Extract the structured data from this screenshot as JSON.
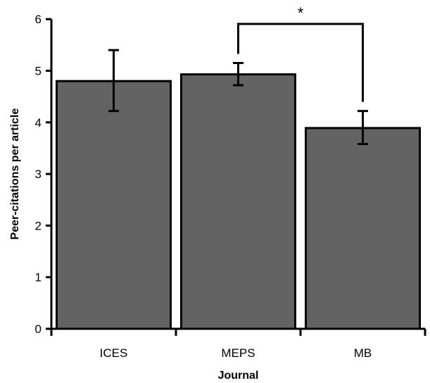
{
  "chart_data": {
    "type": "bar",
    "categories": [
      "ICES",
      "MEPS",
      "MB"
    ],
    "values": [
      4.8,
      4.93,
      3.89
    ],
    "error_low": [
      4.22,
      4.72,
      3.58
    ],
    "error_high": [
      5.4,
      5.15,
      4.22
    ],
    "xlabel": "Journal",
    "ylabel": "Peer-citations per article",
    "ylim": [
      0,
      6
    ],
    "yticks": [
      "0",
      "1",
      "2",
      "3",
      "4",
      "5",
      "6"
    ],
    "bar_color": "#636363",
    "grid": false,
    "significance": {
      "from": "MEPS",
      "to": "MB",
      "label": "*"
    }
  }
}
